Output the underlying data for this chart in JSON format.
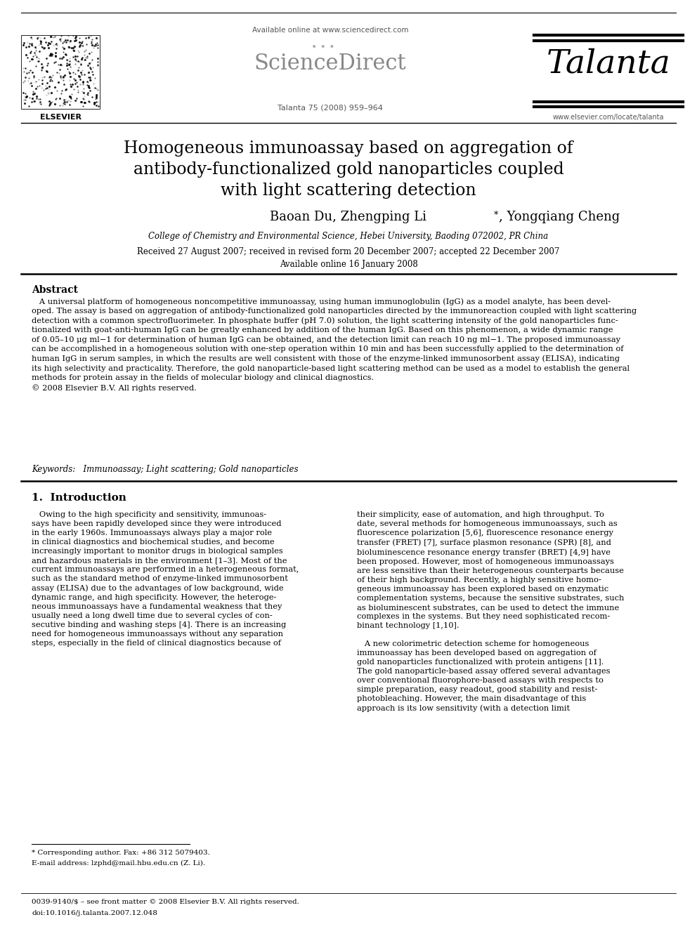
{
  "bg_color": "#ffffff",
  "available_online": "Available online at www.sciencedirect.com",
  "sciencedirect_text": "••• ScienceDirect",
  "talanta": "Talanta",
  "journal_info": "Talanta 75 (2008) 959–964",
  "website": "www.elsevier.com/locate/talanta",
  "elsevier": "ELSEVIER",
  "title_line1": "Homogeneous immunoassay based on aggregation of",
  "title_line2": "antibody-functionalized gold nanoparticles coupled",
  "title_line3": "with light scattering detection",
  "authors_part1": "Baoan Du, Zhengping Li",
  "authors_star": "*",
  "authors_part2": ", Yongqiang Cheng",
  "affiliation": "College of Chemistry and Environmental Science, Hebei University, Baoding 072002, PR China",
  "received_line1": "Received 27 August 2007; received in revised form 20 December 2007; accepted 22 December 2007",
  "received_line2": "Available online 16 January 2008",
  "abstract_title": "Abstract",
  "abstract_text": "   A universal platform of homogeneous noncompetitive immunoassay, using human immunoglobulin (IgG) as a model analyte, has been devel-\noped. The assay is based on aggregation of antibody-functionalized gold nanoparticles directed by the immunoreaction coupled with light scattering\ndetection with a common spectrofluorimeter. In phosphate buffer (pH 7.0) solution, the light scattering intensity of the gold nanoparticles func-\ntionalized with goat-anti-human IgG can be greatly enhanced by addition of the human IgG. Based on this phenomenon, a wide dynamic range\nof 0.05–10 μg ml−1 for determination of human IgG can be obtained, and the detection limit can reach 10 ng ml−1. The proposed immunoassay\ncan be accomplished in a homogeneous solution with one-step operation within 10 min and has been successfully applied to the determination of\nhuman IgG in serum samples, in which the results are well consistent with those of the enzyme-linked immunosorbent assay (ELISA), indicating\nits high selectivity and practicality. Therefore, the gold nanoparticle-based light scattering method can be used as a model to establish the general\nmethods for protein assay in the fields of molecular biology and clinical diagnostics.\n© 2008 Elsevier B.V. All rights reserved.",
  "keywords": "Keywords:   Immunoassay; Light scattering; Gold nanoparticles",
  "intro_title": "1.  Introduction",
  "intro_left": "   Owing to the high specificity and sensitivity, immunoas-\nsays have been rapidly developed since they were introduced\nin the early 1960s. Immunoassays always play a major role\nin clinical diagnostics and biochemical studies, and become\nincreasingly important to monitor drugs in biological samples\nand hazardous materials in the environment [1–3]. Most of the\ncurrent immunoassays are performed in a heterogeneous format,\nsuch as the standard method of enzyme-linked immunosorbent\nassay (ELISA) due to the advantages of low background, wide\ndynamic range, and high specificity. However, the heteroge-\nneous immunoassays have a fundamental weakness that they\nusually need a long dwell time due to several cycles of con-\nsecutive binding and washing steps [4]. There is an increasing\nneed for homogeneous immunoassays without any separation\nsteps, especially in the field of clinical diagnostics because of",
  "intro_right": "their simplicity, ease of automation, and high throughput. To\ndate, several methods for homogeneous immunoassays, such as\nfluorescence polarization [5,6], fluorescence resonance energy\ntransfer (FRET) [7], surface plasmon resonance (SPR) [8], and\nbioluminescence resonance energy transfer (BRET) [4,9] have\nbeen proposed. However, most of homogeneous immunoassays\nare less sensitive than their heterogeneous counterparts because\nof their high background. Recently, a highly sensitive homo-\ngeneous immunoassay has been explored based on enzymatic\ncomplementation systems, because the sensitive substrates, such\nas bioluminescent substrates, can be used to detect the immune\ncomplexes in the systems. But they need sophisticated recom-\nbinant technology [1,10].\n\n   A new colorimetric detection scheme for homogeneous\nimmunoassay has been developed based on aggregation of\ngold nanoparticles functionalized with protein antigens [11].\nThe gold nanoparticle-based assay offered several advantages\nover conventional fluorophore-based assays with respects to\nsimple preparation, easy readout, good stability and resist-\nphotobleaching. However, the main disadvantage of this\napproach is its low sensitivity (with a detection limit",
  "footnote_star": "* Corresponding author. Fax: +86 312 5079403.",
  "footnote_email": "E-mail address: lzphd@mail.hbu.edu.cn (Z. Li).",
  "footer_issn": "0039-9140/$ – see front matter © 2008 Elsevier B.V. All rights reserved.",
  "footer_doi": "doi:10.1016/j.talanta.2007.12.048"
}
